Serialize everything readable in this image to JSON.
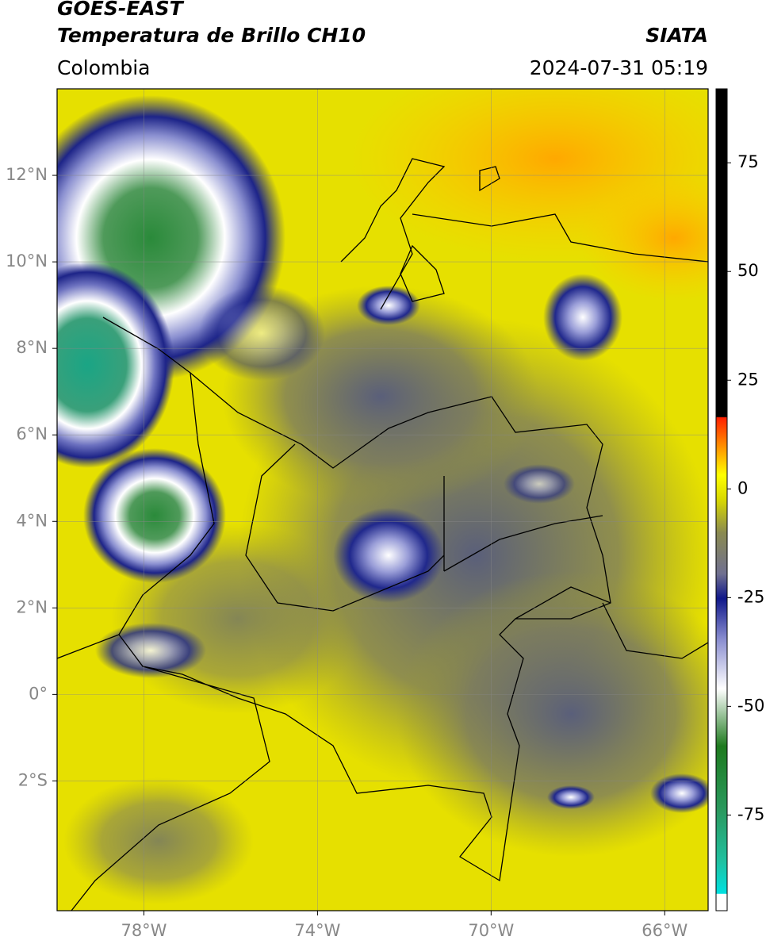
{
  "header": {
    "title": "GOES-EAST",
    "subtitle": "Temperatura de Brillo CH10",
    "source": "SIATA",
    "region": "Colombia",
    "timestamp": "2024-07-31 05:19"
  },
  "map": {
    "xlim": [
      -80,
      -65
    ],
    "ylim": [
      -5,
      14
    ],
    "xticks": [
      {
        "value": -78,
        "label": "78°W"
      },
      {
        "value": -74,
        "label": "74°W"
      },
      {
        "value": -70,
        "label": "70°W"
      },
      {
        "value": -66,
        "label": "66°W"
      }
    ],
    "yticks": [
      {
        "value": 12,
        "label": "12°N"
      },
      {
        "value": 10,
        "label": "10°N"
      },
      {
        "value": 8,
        "label": "8°N"
      },
      {
        "value": 6,
        "label": "6°N"
      },
      {
        "value": 4,
        "label": "4°N"
      },
      {
        "value": 2,
        "label": "2°N"
      },
      {
        "value": 0,
        "label": "0°"
      },
      {
        "value": -2,
        "label": "2°S"
      }
    ]
  },
  "colorbar": {
    "clim": [
      -97,
      92
    ],
    "ticks": [
      75,
      50,
      25,
      0,
      -25,
      -50,
      -75
    ]
  }
}
